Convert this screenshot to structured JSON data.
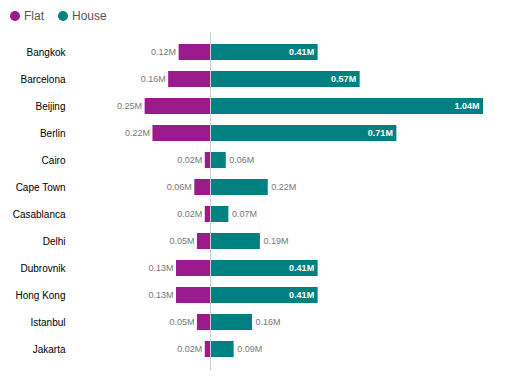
{
  "chart_data": {
    "type": "bar",
    "orientation": "horizontal",
    "categories": [
      "Bangkok",
      "Barcelona",
      "Beijing",
      "Berlin",
      "Cairo",
      "Cape Town",
      "Casablanca",
      "Delhi",
      "Dubrovnik",
      "Hong Kong",
      "Istanbul",
      "Jakarta"
    ],
    "series": [
      {
        "name": "Flat",
        "color": "#9B1B8E",
        "values": [
          0.12,
          0.16,
          0.25,
          0.22,
          0.02,
          0.06,
          0.02,
          0.05,
          0.13,
          0.13,
          0.05,
          0.02
        ],
        "value_labels": [
          "0.12M",
          "0.16M",
          "0.25M",
          "0.22M",
          "0.02M",
          "0.06M",
          "0.02M",
          "0.05M",
          "0.13M",
          "0.13M",
          "0.05M",
          "0.02M"
        ]
      },
      {
        "name": "House",
        "color": "#008080",
        "values": [
          0.41,
          0.57,
          1.04,
          0.71,
          0.06,
          0.22,
          0.07,
          0.19,
          0.41,
          0.41,
          0.16,
          0.09
        ],
        "value_labels": [
          "0.41M",
          "0.57M",
          "1.04M",
          "0.71M",
          "0.06M",
          "0.22M",
          "0.07M",
          "0.19M",
          "0.41M",
          "0.41M",
          "0.16M",
          "0.09M"
        ]
      }
    ],
    "xlim": [
      -0.52,
      1.12
    ],
    "tick_labels": "y",
    "data_labels": true,
    "legend": "upper left",
    "grid": false
  }
}
